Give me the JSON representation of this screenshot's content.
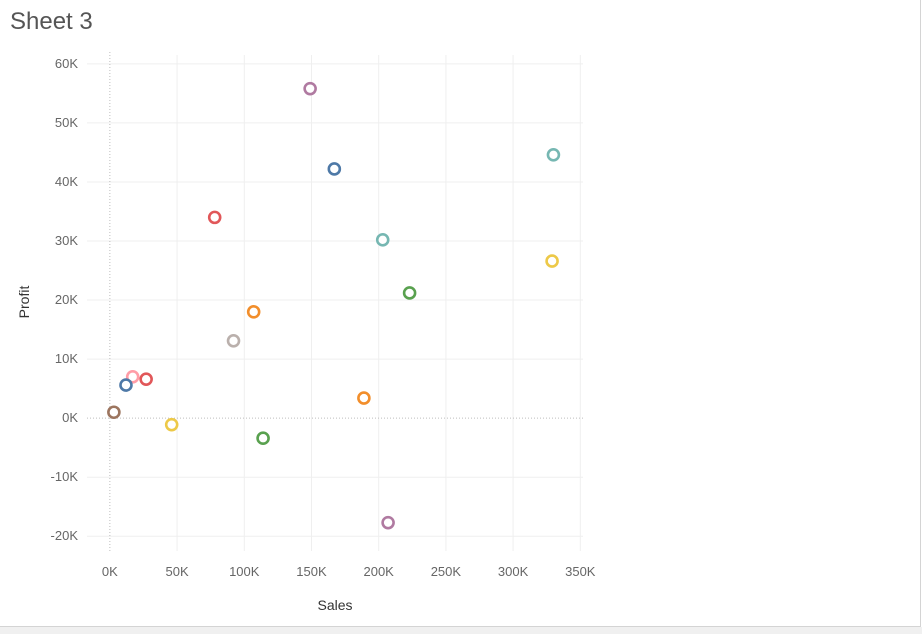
{
  "sheet": {
    "title": "Sheet 3"
  },
  "chart_data": {
    "type": "scatter",
    "xlabel": "Sales",
    "ylabel": "Profit",
    "xlim": [
      -17000,
      352000
    ],
    "ylim": [
      -22500,
      61500
    ],
    "x_ticks": [
      0,
      50000,
      100000,
      150000,
      200000,
      250000,
      300000,
      350000
    ],
    "x_tick_labels": [
      "0K",
      "50K",
      "100K",
      "150K",
      "200K",
      "250K",
      "300K",
      "350K"
    ],
    "y_ticks": [
      60000,
      50000,
      40000,
      30000,
      20000,
      10000,
      0,
      -10000,
      -20000
    ],
    "y_tick_labels": [
      "60K",
      "50K",
      "40K",
      "30K",
      "20K",
      "10K",
      "0K",
      "-10K",
      "-20K"
    ],
    "grid": true,
    "zero_lines": true,
    "marker": "open-circle",
    "points": [
      {
        "x": 149000,
        "y": 55800,
        "color": "#b07aa1"
      },
      {
        "x": 167000,
        "y": 42200,
        "color": "#4e79a7"
      },
      {
        "x": 330000,
        "y": 44600,
        "color": "#76b7b2"
      },
      {
        "x": 78000,
        "y": 34000,
        "color": "#e15759"
      },
      {
        "x": 203000,
        "y": 30200,
        "color": "#76b7b2"
      },
      {
        "x": 329000,
        "y": 26600,
        "color": "#edc948"
      },
      {
        "x": 223000,
        "y": 21200,
        "color": "#59a14f"
      },
      {
        "x": 107000,
        "y": 18000,
        "color": "#f28e2b"
      },
      {
        "x": 92000,
        "y": 13100,
        "color": "#bab0ac"
      },
      {
        "x": 17000,
        "y": 7000,
        "color": "#ff9da7"
      },
      {
        "x": 27000,
        "y": 6600,
        "color": "#e15759"
      },
      {
        "x": 12000,
        "y": 5600,
        "color": "#4e79a7"
      },
      {
        "x": 189000,
        "y": 3400,
        "color": "#f28e2b"
      },
      {
        "x": 3000,
        "y": 1000,
        "color": "#9c755f"
      },
      {
        "x": 46000,
        "y": -1100,
        "color": "#edc948"
      },
      {
        "x": 114000,
        "y": -3400,
        "color": "#59a14f"
      },
      {
        "x": 207000,
        "y": -17700,
        "color": "#b07aa1"
      }
    ]
  }
}
